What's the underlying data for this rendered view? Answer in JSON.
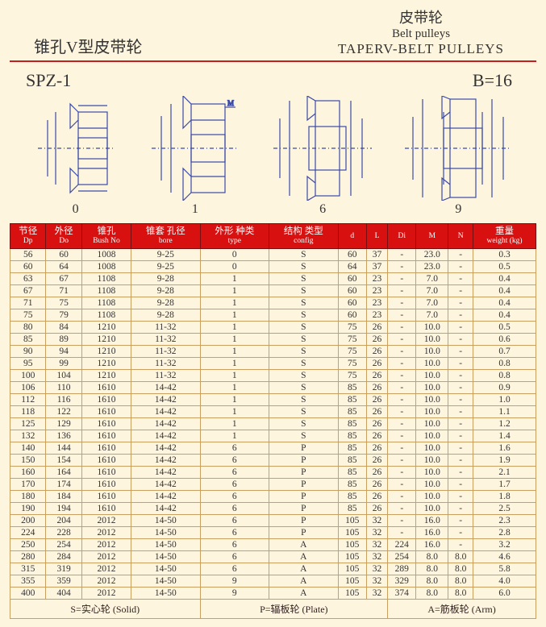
{
  "header": {
    "left_cn": "锥孔V型皮带轮",
    "right_cn": "皮带轮",
    "right_en1": "Belt pulleys",
    "right_en2": "TAPERV-BELT PULLEYS"
  },
  "subheader": {
    "left": "SPZ-1",
    "right": "B=16"
  },
  "diagram_labels": {
    "d0": "0",
    "d1": "1",
    "d6": "6",
    "d9": "9"
  },
  "columns": [
    {
      "cn": "节径",
      "en": "Dp"
    },
    {
      "cn": "外径",
      "en": "Do"
    },
    {
      "cn": "锥孔",
      "en": "Bush No"
    },
    {
      "cn": "锥套 孔径",
      "en": "bore"
    },
    {
      "cn": "外形 种类",
      "en": "type"
    },
    {
      "cn": "结构 类型",
      "en": "config"
    },
    {
      "cn": "",
      "en": "d"
    },
    {
      "cn": "",
      "en": "L"
    },
    {
      "cn": "",
      "en": "Di"
    },
    {
      "cn": "",
      "en": "M"
    },
    {
      "cn": "",
      "en": "N"
    },
    {
      "cn": "重量",
      "en": "weight (kg)"
    }
  ],
  "rows": [
    [
      "56",
      "60",
      "1008",
      "9-25",
      "0",
      "S",
      "60",
      "37",
      "-",
      "23.0",
      "-",
      "0.3"
    ],
    [
      "60",
      "64",
      "1008",
      "9-25",
      "0",
      "S",
      "64",
      "37",
      "-",
      "23.0",
      "-",
      "0.5"
    ],
    [
      "63",
      "67",
      "1108",
      "9-28",
      "1",
      "S",
      "60",
      "23",
      "-",
      "7.0",
      "-",
      "0.4"
    ],
    [
      "67",
      "71",
      "1108",
      "9-28",
      "1",
      "S",
      "60",
      "23",
      "-",
      "7.0",
      "-",
      "0.4"
    ],
    [
      "71",
      "75",
      "1108",
      "9-28",
      "1",
      "S",
      "60",
      "23",
      "-",
      "7.0",
      "-",
      "0.4"
    ],
    [
      "75",
      "79",
      "1108",
      "9-28",
      "1",
      "S",
      "60",
      "23",
      "-",
      "7.0",
      "-",
      "0.4"
    ],
    [
      "80",
      "84",
      "1210",
      "11-32",
      "1",
      "S",
      "75",
      "26",
      "-",
      "10.0",
      "-",
      "0.5"
    ],
    [
      "85",
      "89",
      "1210",
      "11-32",
      "1",
      "S",
      "75",
      "26",
      "-",
      "10.0",
      "-",
      "0.6"
    ],
    [
      "90",
      "94",
      "1210",
      "11-32",
      "1",
      "S",
      "75",
      "26",
      "-",
      "10.0",
      "-",
      "0.7"
    ],
    [
      "95",
      "99",
      "1210",
      "11-32",
      "1",
      "S",
      "75",
      "26",
      "-",
      "10.0",
      "-",
      "0.8"
    ],
    [
      "100",
      "104",
      "1210",
      "11-32",
      "1",
      "S",
      "75",
      "26",
      "-",
      "10.0",
      "-",
      "0.8"
    ],
    [
      "106",
      "110",
      "1610",
      "14-42",
      "1",
      "S",
      "85",
      "26",
      "-",
      "10.0",
      "-",
      "0.9"
    ],
    [
      "112",
      "116",
      "1610",
      "14-42",
      "1",
      "S",
      "85",
      "26",
      "-",
      "10.0",
      "-",
      "1.0"
    ],
    [
      "118",
      "122",
      "1610",
      "14-42",
      "1",
      "S",
      "85",
      "26",
      "-",
      "10.0",
      "-",
      "1.1"
    ],
    [
      "125",
      "129",
      "1610",
      "14-42",
      "1",
      "S",
      "85",
      "26",
      "-",
      "10.0",
      "-",
      "1.2"
    ],
    [
      "132",
      "136",
      "1610",
      "14-42",
      "1",
      "S",
      "85",
      "26",
      "-",
      "10.0",
      "-",
      "1.4"
    ],
    [
      "140",
      "144",
      "1610",
      "14-42",
      "6",
      "P",
      "85",
      "26",
      "-",
      "10.0",
      "-",
      "1.6"
    ],
    [
      "150",
      "154",
      "1610",
      "14-42",
      "6",
      "P",
      "85",
      "26",
      "-",
      "10.0",
      "-",
      "1.9"
    ],
    [
      "160",
      "164",
      "1610",
      "14-42",
      "6",
      "P",
      "85",
      "26",
      "-",
      "10.0",
      "-",
      "2.1"
    ],
    [
      "170",
      "174",
      "1610",
      "14-42",
      "6",
      "P",
      "85",
      "26",
      "-",
      "10.0",
      "-",
      "1.7"
    ],
    [
      "180",
      "184",
      "1610",
      "14-42",
      "6",
      "P",
      "85",
      "26",
      "-",
      "10.0",
      "-",
      "1.8"
    ],
    [
      "190",
      "194",
      "1610",
      "14-42",
      "6",
      "P",
      "85",
      "26",
      "-",
      "10.0",
      "-",
      "2.5"
    ],
    [
      "200",
      "204",
      "2012",
      "14-50",
      "6",
      "P",
      "105",
      "32",
      "-",
      "16.0",
      "-",
      "2.3"
    ],
    [
      "224",
      "228",
      "2012",
      "14-50",
      "6",
      "P",
      "105",
      "32",
      "-",
      "16.0",
      "-",
      "2.8"
    ],
    [
      "250",
      "254",
      "2012",
      "14-50",
      "6",
      "A",
      "105",
      "32",
      "224",
      "16.0",
      "-",
      "3.2"
    ],
    [
      "280",
      "284",
      "2012",
      "14-50",
      "6",
      "A",
      "105",
      "32",
      "254",
      "8.0",
      "8.0",
      "4.6"
    ],
    [
      "315",
      "319",
      "2012",
      "14-50",
      "6",
      "A",
      "105",
      "32",
      "289",
      "8.0",
      "8.0",
      "5.8"
    ],
    [
      "355",
      "359",
      "2012",
      "14-50",
      "9",
      "A",
      "105",
      "32",
      "329",
      "8.0",
      "8.0",
      "4.0"
    ],
    [
      "400",
      "404",
      "2012",
      "14-50",
      "9",
      "A",
      "105",
      "32",
      "374",
      "8.0",
      "8.0",
      "6.0"
    ]
  ],
  "footer": {
    "solid": "S=实心轮 (Solid)",
    "plate": "P=辐板轮 (Plate)",
    "arm": "A=筋板轮 (Arm)"
  },
  "colors": {
    "page_bg": "#fef5de",
    "header_rule": "#c02020",
    "th_bg": "#d91010",
    "th_border": "#7a0d0d",
    "td_border": "#c9a060",
    "diagram_stroke": "#3a4aa8"
  }
}
